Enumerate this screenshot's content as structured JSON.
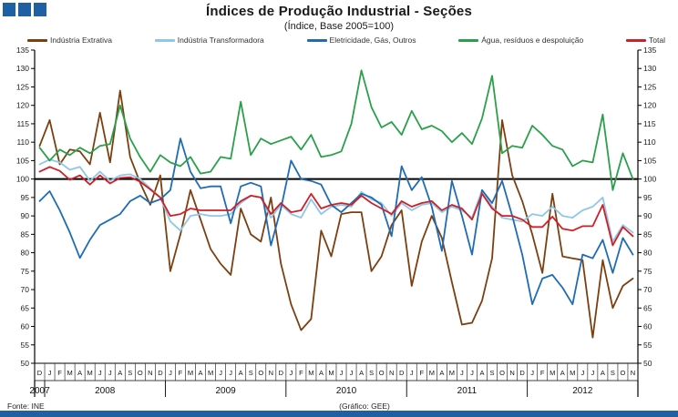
{
  "header": {
    "title": "Índices de Produção Industrial - Seções",
    "subtitle": "(Índice,  Base 2005=100)",
    "accent_color": "#1f5fa3",
    "logo_squares": 3
  },
  "footer": {
    "source": "Fonte:  INE",
    "credit": "(Gráfico:  GEE)"
  },
  "chart_data": {
    "type": "line",
    "title": "Índices de Produção Industrial - Seções",
    "subtitle": "(Índice, Base 2005=100)",
    "ylabel": "",
    "xlabel": "",
    "ylim": [
      50,
      135
    ],
    "ytick_step": 5,
    "baseline": 100,
    "grid": false,
    "legend_position": "top",
    "axis_color": "#000000",
    "tick_text_color": "#1a1a1a",
    "month_letters": [
      "D",
      "J",
      "F",
      "M",
      "A",
      "M",
      "J",
      "J",
      "A",
      "S",
      "O",
      "N",
      "D",
      "J",
      "F",
      "M",
      "A",
      "M",
      "J",
      "J",
      "A",
      "S",
      "O",
      "N",
      "D",
      "J",
      "F",
      "M",
      "A",
      "M",
      "J",
      "J",
      "A",
      "S",
      "O",
      "N",
      "D",
      "J",
      "F",
      "M",
      "A",
      "M",
      "J",
      "J",
      "A",
      "S",
      "O",
      "N",
      "D",
      "J",
      "F",
      "M",
      "A",
      "M",
      "J",
      "J",
      "A",
      "S",
      "O",
      "N"
    ],
    "years": [
      {
        "label": "2007",
        "months": 1
      },
      {
        "label": "2008",
        "months": 12
      },
      {
        "label": "2009",
        "months": 12
      },
      {
        "label": "2010",
        "months": 12
      },
      {
        "label": "2011",
        "months": 12
      },
      {
        "label": "2012",
        "months": 11
      }
    ],
    "series": [
      {
        "name": "Indústria Extrativa",
        "color": "#7c3f10",
        "values": [
          109,
          116,
          104,
          108,
          107.5,
          104,
          118,
          104.5,
          124,
          106,
          99,
          93,
          101,
          75,
          85,
          97,
          89,
          81,
          77,
          74,
          92,
          85,
          83,
          95,
          77,
          66,
          59,
          62,
          86,
          79,
          90.5,
          91,
          91,
          75,
          79,
          87.5,
          91.5,
          71,
          83,
          90,
          84,
          72,
          60.5,
          61,
          67,
          78.5,
          116,
          101,
          94,
          85,
          74.5,
          96,
          79,
          78.5,
          78,
          57,
          78,
          65,
          71,
          73
        ]
      },
      {
        "name": "Indústria Transformadora",
        "color": "#8fc7e8",
        "values": [
          104,
          105.3,
          104.5,
          102.5,
          103.3,
          99.5,
          102,
          99.5,
          101,
          101.3,
          100,
          97.5,
          95,
          88.5,
          86,
          90,
          90.5,
          90,
          90,
          90.5,
          93.5,
          95.5,
          95,
          89.5,
          93,
          90.5,
          89.5,
          94.5,
          90.5,
          92.5,
          93,
          92.5,
          96.5,
          94.5,
          93.5,
          90,
          93.5,
          91.5,
          93,
          93.5,
          91,
          92.5,
          91.5,
          89.5,
          97,
          92.5,
          89.5,
          89,
          88.5,
          90.5,
          90,
          92.5,
          90,
          89.5,
          91.5,
          92.5,
          95,
          83,
          87.5,
          85.5
        ]
      },
      {
        "name": "Eletricidade, Gás, Outros",
        "color": "#1f6cb2",
        "values": [
          94,
          96.7,
          91.5,
          85.5,
          78.6,
          83.5,
          87.5,
          89,
          90.5,
          94,
          95.5,
          93.5,
          94.5,
          97,
          111,
          102,
          97.5,
          98,
          98,
          88,
          98,
          99,
          98,
          82,
          92,
          105,
          100,
          99.5,
          98.5,
          93,
          91,
          93.5,
          96,
          95,
          93,
          84.5,
          103.5,
          97,
          100.5,
          92.5,
          80.5,
          99.5,
          90,
          79.5,
          97,
          93.5,
          99.5,
          90,
          79.5,
          66,
          73,
          74,
          70.5,
          66,
          79.5,
          78.5,
          83.5,
          74.5,
          84,
          79.5
        ]
      },
      {
        "name": "Água, resíduos e despoluição",
        "color": "#2aa04a",
        "values": [
          108.5,
          105,
          108,
          106.5,
          108.5,
          107,
          109,
          109.5,
          120,
          111,
          106,
          102,
          106.5,
          104.5,
          103.5,
          106,
          101.5,
          102,
          106,
          105.5,
          121,
          106.5,
          111,
          109.5,
          110.5,
          111.5,
          108,
          112,
          106,
          106.5,
          107.5,
          115,
          129.5,
          119.5,
          114,
          115.5,
          112,
          118.5,
          113.5,
          114.5,
          113,
          110,
          112.5,
          109.5,
          116.5,
          128,
          107,
          109,
          108.5,
          114.5,
          112,
          109,
          108,
          103.5,
          105,
          104.5,
          117.5,
          97,
          107,
          100
        ]
      },
      {
        "name": "Total",
        "color": "#d01f26",
        "values": [
          102,
          103.3,
          102.2,
          99.8,
          101,
          98.5,
          101,
          98.8,
          100.3,
          100.5,
          99.3,
          97.2,
          95,
          90,
          90.5,
          92,
          91.5,
          91.5,
          91.5,
          91.5,
          94,
          95.5,
          95,
          90.5,
          93.5,
          91,
          91.5,
          96,
          92,
          93,
          93.5,
          93,
          95.5,
          93.5,
          92,
          90.5,
          94,
          92.5,
          93.5,
          94,
          91.5,
          93,
          92,
          89,
          96,
          92,
          90,
          90,
          89,
          87,
          87,
          89.8,
          86.5,
          86,
          87.2,
          87.2,
          93,
          82,
          87,
          84.5
        ]
      }
    ]
  }
}
